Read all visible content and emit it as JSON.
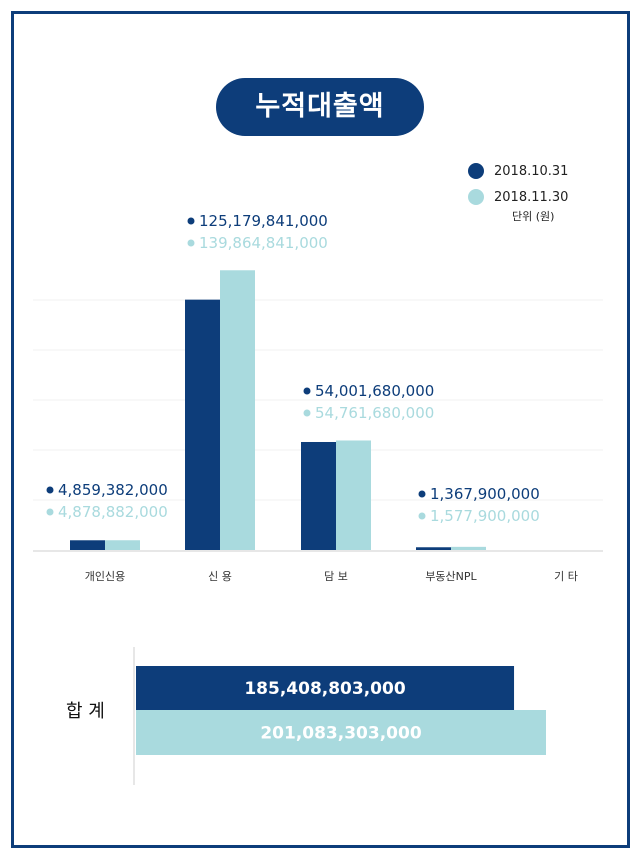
{
  "title": "누적대출액",
  "legend": [
    {
      "label": "2018.10.31",
      "color": "#0d3d7a"
    },
    {
      "label": "2018.11.30",
      "color": "#a9dade"
    }
  ],
  "unit_label": "단위 (원)",
  "chart_data": [
    {
      "type": "bar",
      "title": "누적대출액",
      "categories": [
        "개인신용",
        "신 용",
        "담 보",
        "부동산NPL",
        "기 타"
      ],
      "series": [
        {
          "name": "2018.10.31",
          "color": "#0d3d7a",
          "values": [
            4859382000,
            125179841000,
            54001680000,
            1367900000,
            0
          ]
        },
        {
          "name": "2018.11.30",
          "color": "#a9dade",
          "values": [
            4878882000,
            139864841000,
            54761680000,
            1577900000,
            0
          ]
        }
      ],
      "value_labels": [
        [
          "4,859,382,000",
          "125,179,841,000",
          "54,001,680,000",
          "1,367,900,000",
          ""
        ],
        [
          "4,878,882,000",
          "139,864,841,000",
          "54,761,680,000",
          "1,577,900,000",
          ""
        ]
      ],
      "ylim": [
        0,
        150000000000
      ],
      "grid": true
    },
    {
      "type": "bar",
      "orientation": "horizontal",
      "category": "합 계",
      "series": [
        {
          "name": "2018.10.31",
          "color": "#0d3d7a",
          "value": 185408803000,
          "label": "185,408,803,000"
        },
        {
          "name": "2018.11.30",
          "color": "#a9dade",
          "value": 201083303000,
          "label": "201,083,303,000"
        }
      ],
      "xlim": [
        0,
        210000000000
      ]
    }
  ]
}
